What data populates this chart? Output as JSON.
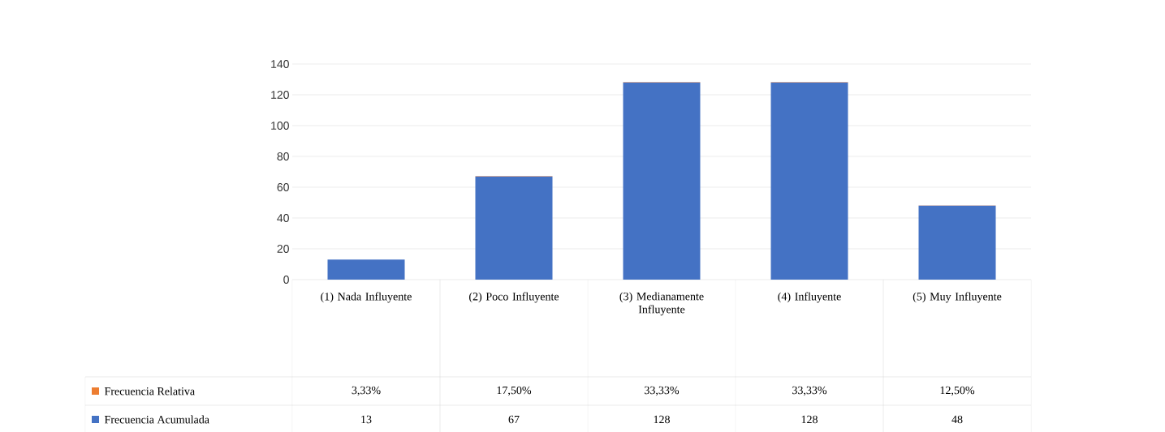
{
  "chart_data": {
    "type": "bar",
    "stacked": true,
    "categories": [
      "(1) Nada Influyente",
      "(2) Poco Influyente",
      "(3) Medianamente Influyente",
      "(4) Influyente",
      "(5) Muy Influyente"
    ],
    "series": [
      {
        "name": "Frecuencia Acumulada",
        "color": "#4472c4",
        "values": [
          13,
          67,
          128,
          128,
          48
        ],
        "value_labels": [
          "13",
          "67",
          "128",
          "128",
          "48"
        ]
      },
      {
        "name": "Frecuencia Relativa",
        "color": "#ed7d31",
        "values": [
          0.0333,
          0.175,
          0.3333,
          0.3333,
          0.125
        ],
        "value_labels": [
          "3,33%",
          "17,50%",
          "33,33%",
          "33,33%",
          "12,50%"
        ]
      }
    ],
    "ylim": [
      0,
      140
    ],
    "yticks": [
      0,
      20,
      40,
      60,
      80,
      100,
      120,
      140
    ],
    "grid": "y",
    "legend": "bottom"
  }
}
